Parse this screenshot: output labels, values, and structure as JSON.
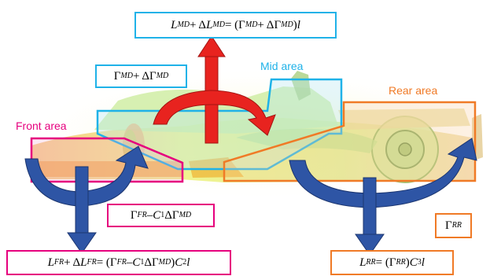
{
  "regions": {
    "front": {
      "label": "Front area",
      "color": "#e6007e"
    },
    "mid": {
      "label": "Mid area",
      "color": "#1fb2e8"
    },
    "rear": {
      "label": "Rear area",
      "color": "#f07a26"
    }
  },
  "arrow_colors": {
    "lift_moment": "#e8231f",
    "front_rear": "#2e55a5"
  },
  "equations": {
    "mid_lift": "L_{MD} + ΔL_{MD} = (Γ_{MD} + ΔΓ_{MD})l",
    "mid_circulation": "Γ_{MD} + ΔΓ_{MD}",
    "front_circulation": "Γ_{FR} – C_1ΔΓ_{MD}",
    "front_lift": "L_{FR} + ΔL_{FR} = (Γ_{FR} – C_1ΔΓ_{MD})C_2l",
    "rear_circulation": "Γ_{RR}",
    "rear_lift": "L_{RR} = (Γ_{RR})C_3l"
  }
}
